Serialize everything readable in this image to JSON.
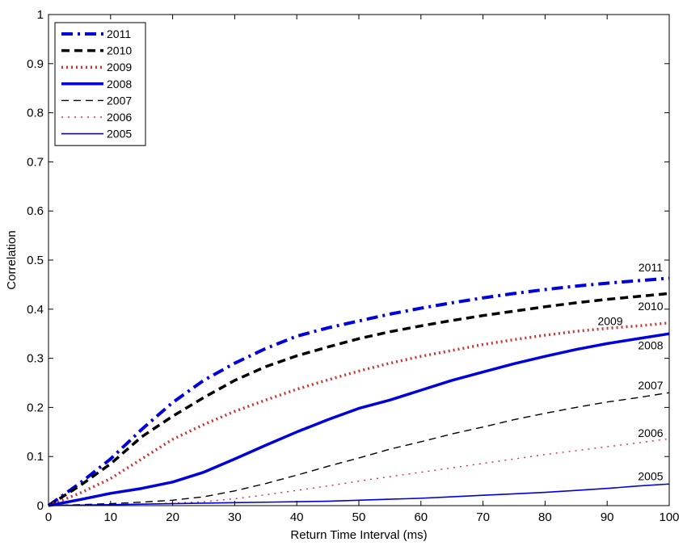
{
  "chart_data": {
    "type": "line",
    "title": "",
    "xlabel": "Return Time Interval (ms)",
    "ylabel": "Correlation",
    "xlim": [
      0,
      100
    ],
    "ylim": [
      0,
      1
    ],
    "xticks": [
      0,
      10,
      20,
      30,
      40,
      50,
      60,
      70,
      80,
      90,
      100
    ],
    "yticks": [
      0,
      0.1,
      0.2,
      0.3,
      0.4,
      0.5,
      0.6,
      0.7,
      0.8,
      0.9,
      1
    ],
    "x": [
      0,
      5,
      10,
      15,
      20,
      25,
      30,
      35,
      40,
      45,
      50,
      55,
      60,
      65,
      70,
      75,
      80,
      85,
      90,
      95,
      100
    ],
    "legend": {
      "position": "top-left"
    },
    "series": [
      {
        "name": "2011",
        "color": "#0000dd",
        "dash": "dashdot",
        "width": 4,
        "values": [
          0,
          0.045,
          0.095,
          0.155,
          0.21,
          0.255,
          0.29,
          0.32,
          0.345,
          0.362,
          0.376,
          0.39,
          0.402,
          0.413,
          0.423,
          0.432,
          0.44,
          0.447,
          0.453,
          0.458,
          0.463
        ]
      },
      {
        "name": "2010",
        "color": "#000000",
        "dash": "dash",
        "width": 3.5,
        "values": [
          0,
          0.04,
          0.085,
          0.14,
          0.182,
          0.22,
          0.255,
          0.283,
          0.305,
          0.323,
          0.34,
          0.354,
          0.366,
          0.377,
          0.387,
          0.396,
          0.405,
          0.413,
          0.42,
          0.426,
          0.432
        ]
      },
      {
        "name": "2009",
        "color": "#cc3333",
        "dash": "dot",
        "width": 3.5,
        "values": [
          0,
          0.025,
          0.055,
          0.095,
          0.135,
          0.165,
          0.192,
          0.215,
          0.237,
          0.256,
          0.274,
          0.29,
          0.304,
          0.316,
          0.328,
          0.338,
          0.347,
          0.355,
          0.361,
          0.366,
          0.372
        ]
      },
      {
        "name": "2008",
        "color": "#0000dd",
        "dash": "solid",
        "width": 3.5,
        "values": [
          0,
          0.012,
          0.025,
          0.035,
          0.048,
          0.068,
          0.095,
          0.123,
          0.15,
          0.175,
          0.198,
          0.215,
          0.235,
          0.255,
          0.272,
          0.289,
          0.304,
          0.318,
          0.33,
          0.34,
          0.35
        ]
      },
      {
        "name": "2007",
        "color": "#000000",
        "dash": "dash-thin",
        "width": 1.4,
        "values": [
          0,
          0.002,
          0.004,
          0.007,
          0.011,
          0.018,
          0.03,
          0.045,
          0.062,
          0.08,
          0.097,
          0.115,
          0.13,
          0.146,
          0.16,
          0.175,
          0.188,
          0.2,
          0.211,
          0.22,
          0.23
        ]
      },
      {
        "name": "2006",
        "color": "#cc3333",
        "dash": "dot-thin",
        "width": 1.4,
        "values": [
          0,
          0.001,
          0.002,
          0.003,
          0.005,
          0.008,
          0.014,
          0.022,
          0.031,
          0.04,
          0.05,
          0.059,
          0.068,
          0.077,
          0.086,
          0.095,
          0.104,
          0.112,
          0.12,
          0.128,
          0.136
        ]
      },
      {
        "name": "2005",
        "color": "#0000dd",
        "dash": "solid-thin",
        "width": 1.6,
        "values": [
          0,
          0.001,
          0.002,
          0.003,
          0.004,
          0.005,
          0.006,
          0.007,
          0.008,
          0.009,
          0.011,
          0.013,
          0.015,
          0.018,
          0.021,
          0.024,
          0.027,
          0.031,
          0.035,
          0.04,
          0.044
        ]
      }
    ],
    "annotations": [
      {
        "text": "2011",
        "x": 97,
        "y": 0.477
      },
      {
        "text": "2010",
        "x": 97,
        "y": 0.398
      },
      {
        "text": "2009",
        "x": 90.5,
        "y": 0.368
      },
      {
        "text": "2008",
        "x": 97,
        "y": 0.318
      },
      {
        "text": "2007",
        "x": 97,
        "y": 0.237
      },
      {
        "text": "2006",
        "x": 97,
        "y": 0.14
      },
      {
        "text": "2005",
        "x": 97,
        "y": 0.052
      }
    ]
  }
}
